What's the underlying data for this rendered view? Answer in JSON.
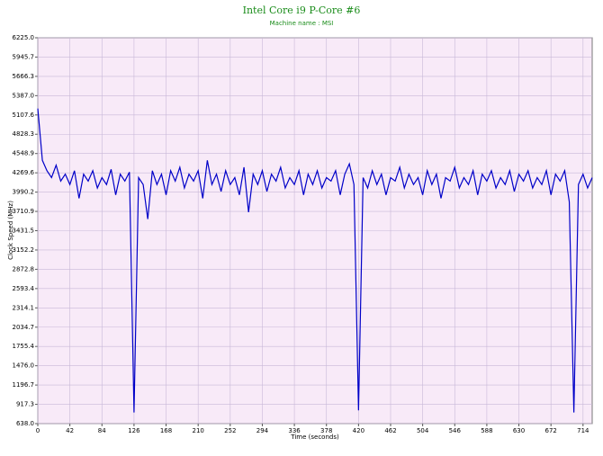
{
  "chart_data": {
    "type": "line",
    "title": "Intel Core i9 P-Core #6",
    "subtitle": "Machine name : MSI",
    "x_label": "Time (seconds)",
    "y_label": "Clock Speed (MHz)",
    "grid": true,
    "xlim": [
      0,
      726
    ],
    "xticks": [
      0,
      42,
      84,
      126,
      168,
      210,
      252,
      294,
      336,
      378,
      420,
      462,
      504,
      546,
      588,
      630,
      672,
      714
    ],
    "ylim": [
      638,
      6225
    ],
    "yticks": [
      {
        "value": 638,
        "label": "638.0"
      },
      917.3,
      1196.7,
      {
        "value": 1476,
        "label": "1476.0"
      },
      1755.4,
      2034.7,
      2314.1,
      2593.4,
      2872.8,
      3152.2,
      3431.5,
      3710.9,
      3990.2,
      4269.6,
      4548.9,
      4828.3,
      5107.6,
      {
        "value": 5387,
        "label": "5387.0"
      },
      5666.3,
      5945.7,
      {
        "value": 6225,
        "label": "6225.0"
      }
    ],
    "x": [
      0,
      6,
      12,
      18,
      24,
      30,
      36,
      42,
      48,
      54,
      60,
      66,
      72,
      78,
      84,
      90,
      96,
      102,
      108,
      114,
      120,
      126,
      132,
      138,
      144,
      150,
      156,
      162,
      168,
      174,
      180,
      186,
      192,
      198,
      204,
      210,
      216,
      222,
      228,
      234,
      240,
      246,
      252,
      258,
      264,
      270,
      276,
      282,
      288,
      294,
      300,
      306,
      312,
      318,
      324,
      330,
      336,
      342,
      348,
      354,
      360,
      366,
      372,
      378,
      384,
      390,
      396,
      402,
      408,
      414,
      420,
      426,
      432,
      438,
      444,
      450,
      456,
      462,
      468,
      474,
      480,
      486,
      492,
      498,
      504,
      510,
      516,
      522,
      528,
      534,
      540,
      546,
      552,
      558,
      564,
      570,
      576,
      582,
      588,
      594,
      600,
      606,
      612,
      618,
      624,
      630,
      636,
      642,
      648,
      654,
      660,
      666,
      672,
      678,
      684,
      690,
      696,
      702,
      708,
      714,
      720,
      726
    ],
    "series": [
      {
        "name": "Clock Speed",
        "color": "#0000c8",
        "values": [
          5200,
          4450,
          4300,
          4200,
          4380,
          4150,
          4250,
          4100,
          4300,
          3900,
          4250,
          4150,
          4300,
          4050,
          4200,
          4100,
          4320,
          3950,
          4250,
          4150,
          4280,
          800,
          4200,
          4100,
          3600,
          4300,
          4100,
          4250,
          3950,
          4300,
          4150,
          4350,
          4050,
          4250,
          4150,
          4300,
          3900,
          4450,
          4100,
          4250,
          4000,
          4300,
          4100,
          4200,
          3950,
          4350,
          3700,
          4250,
          4100,
          4300,
          4000,
          4250,
          4150,
          4350,
          4050,
          4200,
          4100,
          4300,
          3950,
          4250,
          4100,
          4300,
          4050,
          4200,
          4150,
          4300,
          3950,
          4250,
          4400,
          4100,
          830,
          4200,
          4050,
          4300,
          4100,
          4250,
          3950,
          4200,
          4150,
          4350,
          4050,
          4250,
          4100,
          4200,
          3950,
          4300,
          4100,
          4250,
          3900,
          4200,
          4150,
          4350,
          4050,
          4200,
          4100,
          4300,
          3950,
          4250,
          4150,
          4300,
          4050,
          4200,
          4100,
          4300,
          4000,
          4250,
          4150,
          4300,
          4050,
          4200,
          4100,
          4300,
          3950,
          4250,
          4150,
          4300,
          3850,
          800,
          4100,
          4250,
          4050,
          4200
        ]
      }
    ]
  }
}
